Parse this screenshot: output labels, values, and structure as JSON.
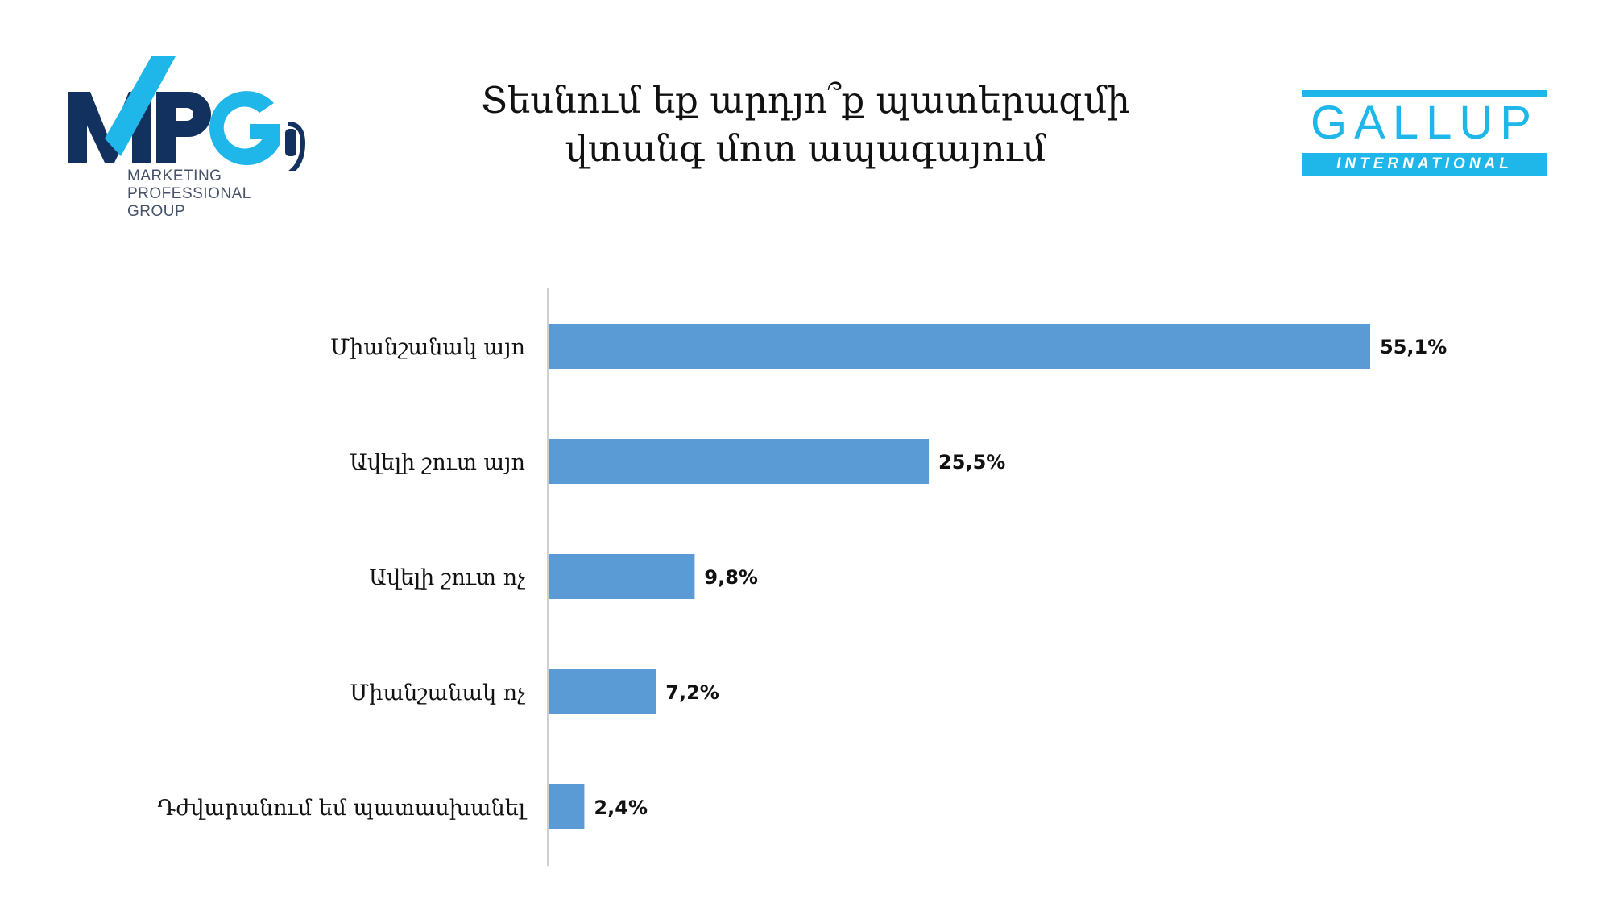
{
  "logos": {
    "left": {
      "name": "MPG",
      "subtitle_lines": [
        "MARKETING",
        "PROFESSIONAL",
        "GROUP"
      ]
    },
    "right": {
      "name": "GALLUP",
      "subtitle": "INTERNATIONAL"
    }
  },
  "colors": {
    "bar": "#5b9bd5",
    "mpg_navy": "#12315e",
    "mpg_cyan": "#1fb6ea",
    "gallup_cyan": "#1fb6ea",
    "axis": "#cfcfcf"
  },
  "chart_data": {
    "type": "bar",
    "orientation": "horizontal",
    "title_lines": [
      "Տեսնում եք արդյո՞ք պատերազմի",
      "վտանգ մոտ ապագայում"
    ],
    "categories": [
      "Միանշանակ այո",
      "Ավելի շուտ այո",
      "Ավելի շուտ ոչ",
      "Միանշանակ ոչ",
      "Դժվարանում եմ պատասխանել"
    ],
    "values": [
      55.1,
      25.5,
      9.8,
      7.2,
      2.4
    ],
    "value_labels": [
      "55,1%",
      "25,5%",
      "9,8%",
      "7,2%",
      "2,4%"
    ],
    "xlim": [
      0,
      60
    ],
    "grid": false,
    "legend": "none"
  }
}
